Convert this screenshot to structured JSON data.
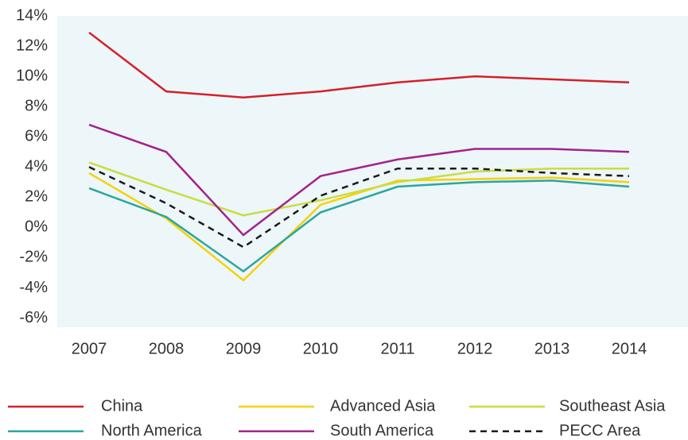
{
  "chart_data": {
    "type": "line",
    "categories": [
      "2007",
      "2008",
      "2009",
      "2010",
      "2011",
      "2012",
      "2013",
      "2014"
    ],
    "series": [
      {
        "name": "China",
        "color": "#d4202a",
        "values": [
          12.9,
          9.0,
          8.6,
          9.0,
          9.6,
          10.0,
          9.8,
          9.6
        ]
      },
      {
        "name": "Advanced Asia",
        "color": "#f5d10a",
        "values": [
          3.6,
          0.6,
          -3.5,
          1.5,
          3.1,
          3.2,
          3.3,
          3.0
        ]
      },
      {
        "name": "Southeast Asia",
        "color": "#c9dd3f",
        "values": [
          4.3,
          2.5,
          0.8,
          1.8,
          3.0,
          3.7,
          3.9,
          3.9
        ]
      },
      {
        "name": "North America",
        "color": "#2ba6a0",
        "values": [
          2.6,
          0.7,
          -2.9,
          1.0,
          2.7,
          3.0,
          3.1,
          2.7
        ]
      },
      {
        "name": "South America",
        "color": "#a3228e",
        "values": [
          6.8,
          5.0,
          -0.5,
          3.4,
          4.5,
          5.2,
          5.2,
          5.0
        ]
      },
      {
        "name": "PECC Area",
        "color": "#1a1a1a",
        "dashed": true,
        "values": [
          4.0,
          1.6,
          -1.3,
          2.1,
          3.9,
          3.9,
          3.6,
          3.4
        ]
      }
    ],
    "ylim": [
      -6.6,
      14
    ],
    "yticks": [
      {
        "value": 14,
        "label": "14%"
      },
      {
        "value": 12,
        "label": "12%"
      },
      {
        "value": 10,
        "label": "10%"
      },
      {
        "value": 8,
        "label": "8%"
      },
      {
        "value": 6,
        "label": "6%"
      },
      {
        "value": 4,
        "label": "4%"
      },
      {
        "value": 2,
        "label": "2%"
      },
      {
        "value": 0,
        "label": "0%"
      },
      {
        "value": -2,
        "label": "-2%"
      },
      {
        "value": -4,
        "label": "-4%"
      },
      {
        "value": -6,
        "label": "-6%"
      }
    ],
    "grid": false,
    "legend": "bottom"
  }
}
